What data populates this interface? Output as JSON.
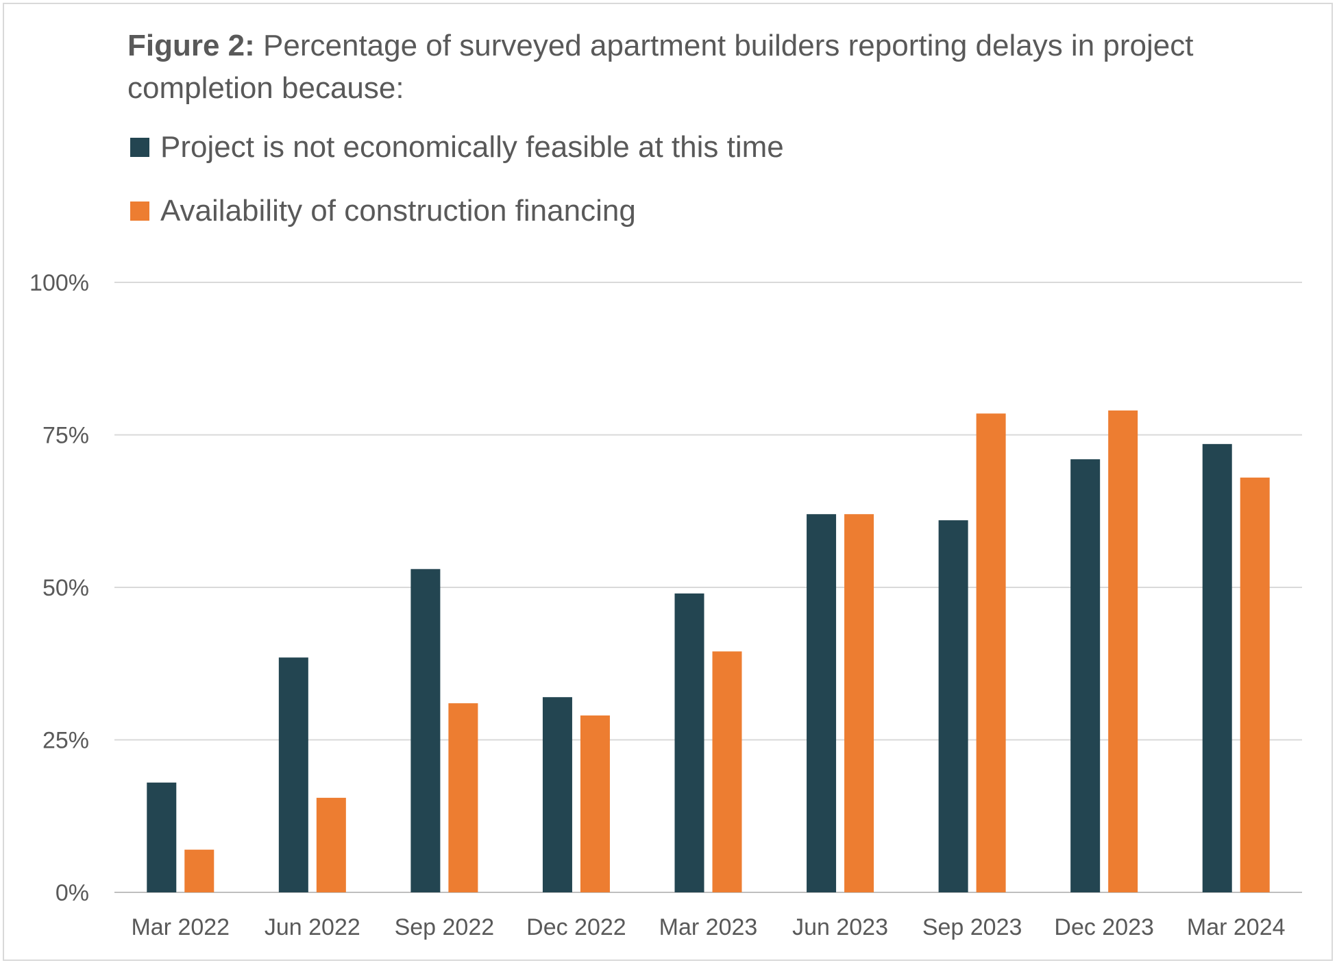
{
  "chart_data": {
    "type": "bar",
    "title_bold": "Figure 2:",
    "title": "Percentage of surveyed apartment builders reporting delays in project completion because:",
    "categories": [
      "Mar 2022",
      "Jun 2022",
      "Sep 2022",
      "Dec 2022",
      "Mar 2023",
      "Jun 2023",
      "Sep 2023",
      "Dec 2023",
      "Mar 2024"
    ],
    "series": [
      {
        "name": "Project is not economically feasible at this time",
        "color": "#234551",
        "values": [
          18,
          38.5,
          53,
          32,
          49,
          62,
          61,
          71,
          73.5
        ]
      },
      {
        "name": "Availability of construction financing",
        "color": "#ed7d31",
        "values": [
          7,
          15.5,
          31,
          29,
          39.5,
          62,
          78.5,
          79,
          68
        ]
      }
    ],
    "ylim": [
      0,
      100
    ],
    "yticks": [
      0,
      25,
      50,
      75,
      100
    ],
    "ytick_labels": [
      "0%",
      "25%",
      "50%",
      "75%",
      "100%"
    ],
    "xlabel": "",
    "ylabel": "",
    "grid": true,
    "legend_position": "top-left"
  }
}
